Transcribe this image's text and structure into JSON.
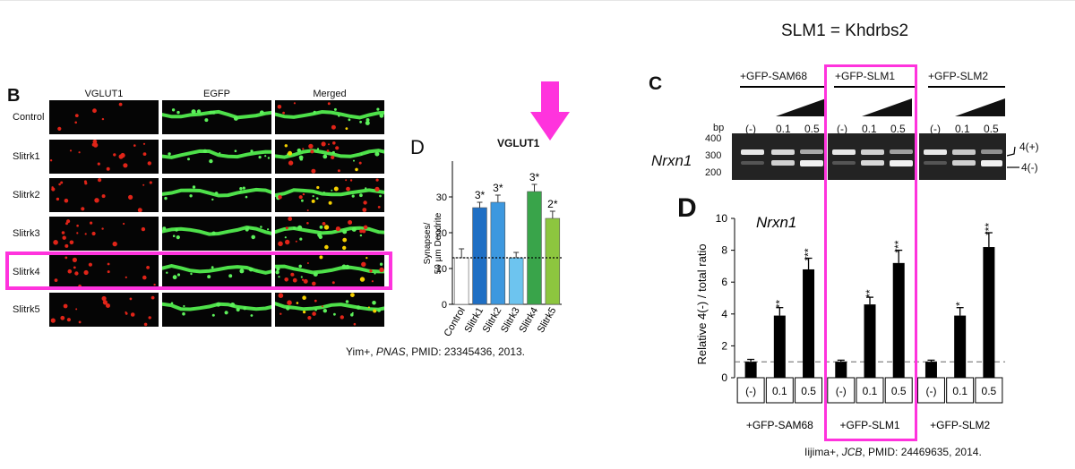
{
  "panel_b": {
    "letter": "B",
    "columns": [
      "VGLUT1",
      "EGFP",
      "Merged"
    ],
    "rows": [
      "Control",
      "Slitrk1",
      "Slitrk2",
      "Slitrk3",
      "Slitrk4",
      "Slitrk5"
    ],
    "highlight_row": "Slitrk4",
    "highlight_color": "#ff33dd"
  },
  "chart_data": [
    {
      "type": "bar",
      "panel": "D",
      "title": "VGLUT1",
      "ylabel": "Synapses/ 50 µm Dendrite",
      "xlabel": "",
      "categories": [
        "Control",
        "Slitrk1",
        "Slitrk2",
        "Slitrk3",
        "Slitrk4",
        "Slitrk5"
      ],
      "values": [
        13,
        27,
        28.5,
        13,
        31.5,
        24
      ],
      "errors": [
        2.5,
        1.5,
        2,
        1.5,
        2,
        2
      ],
      "annotations": [
        "",
        "3*",
        "3*",
        "",
        "3*",
        "2*"
      ],
      "colors": [
        "#ffffff",
        "#1f6fc4",
        "#3d98df",
        "#6dc4ef",
        "#39a44a",
        "#8dc63f"
      ],
      "ylim": [
        0,
        40
      ],
      "yticks": [
        0,
        10,
        20,
        30
      ],
      "reference_line": 13
    },
    {
      "type": "bar",
      "panel": "D",
      "title": "Nrxn1",
      "ylabel": "Relative 4(-) / total ratio",
      "xlabel": "",
      "groups": [
        "+GFP-SAM68",
        "+GFP-SLM1",
        "+GFP-SLM2"
      ],
      "categories": [
        "(-)",
        "0.1",
        "0.5",
        "(-)",
        "0.1",
        "0.5",
        "(-)",
        "0.1",
        "0.5"
      ],
      "values": [
        1,
        3.9,
        6.8,
        1,
        4.6,
        7.2,
        1,
        3.9,
        8.2
      ],
      "errors": [
        0.15,
        0.5,
        0.7,
        0.1,
        0.45,
        0.8,
        0.1,
        0.5,
        0.9
      ],
      "annotations": [
        "",
        "**",
        "***",
        "",
        "**",
        "***",
        "",
        "*",
        "***"
      ],
      "ylim": [
        0,
        10
      ],
      "yticks": [
        0,
        2,
        4,
        6,
        8,
        10
      ],
      "reference_line": 1,
      "highlight_group": "+GFP-SLM1"
    }
  ],
  "arrow_color": "#ff33dd",
  "citation_left": {
    "prefix": "Yim+, ",
    "journal": "PNAS",
    "suffix": ", PMID: 23345436, 2013."
  },
  "right_figure": {
    "title": "SLM1 = Khdrbs2",
    "panel_c_letter": "C",
    "panel_d_letter": "D",
    "groups": [
      "+GFP-SAM68",
      "+GFP-SLM1",
      "+GFP-SLM2"
    ],
    "lanes": [
      "(-)",
      "0.1",
      "0.5"
    ],
    "bp_label": "bp",
    "bp_markers": [
      "400",
      "300",
      "200"
    ],
    "gene_label": "Nrxn1",
    "band_plus": "4(+)",
    "band_minus": "4(-)"
  },
  "citation_right": {
    "prefix": "Iijima+, ",
    "journal": "JCB",
    "suffix": ", PMID: 24469635, 2014."
  }
}
